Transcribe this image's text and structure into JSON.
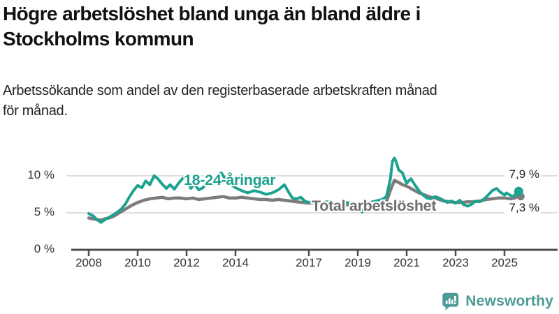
{
  "header": {
    "title_line1": "Högre arbetslöshet bland unga än bland äldre i",
    "title_line2": "Stockholms kommun",
    "subtitle_line1": "Arbetssökande som andel av den registerbaserade arbetskraften månad",
    "subtitle_line2": "för månad."
  },
  "chart_data": {
    "type": "line",
    "title": "Högre arbetslöshet bland unga än bland äldre i Stockholms kommun",
    "xlabel": "",
    "ylabel": "Arbetssökande som andel av den registerbaserade arbetskraften",
    "x_unit": "år (månadsdata)",
    "value_unit": "%",
    "ylim": [
      0,
      13
    ],
    "xlim": [
      2007.6,
      2025.9
    ],
    "grid": "horizontal",
    "grid_values": [
      5,
      10
    ],
    "y_ticks": [
      {
        "value": 10,
        "label": "10 %"
      },
      {
        "value": 5,
        "label": "5 %"
      },
      {
        "value": 0,
        "label": "0 %"
      }
    ],
    "x_ticks": [
      {
        "value": 2008,
        "label": "2008"
      },
      {
        "value": 2010,
        "label": "2010"
      },
      {
        "value": 2012,
        "label": "2012"
      },
      {
        "value": 2014,
        "label": "2014"
      },
      {
        "value": 2017,
        "label": "2017"
      },
      {
        "value": 2019,
        "label": "2019"
      },
      {
        "value": 2021,
        "label": "2021"
      },
      {
        "value": 2023,
        "label": "2023"
      },
      {
        "value": 2025,
        "label": "2025"
      }
    ],
    "colors": {
      "youth": "#1CA28F",
      "total": "#7C7C7C",
      "grid": "#DEDEDE",
      "axis": "#4D4D4D"
    },
    "series": [
      {
        "name": "Total arbetslöshet",
        "color": "#7C7C7C",
        "label_color": "#6E6E6E",
        "stroke_width": 4.5,
        "end_label": "7,3 %",
        "end_value": 7.3,
        "dot_radius": 5.5,
        "dot_dx": 3,
        "dot_dy": 1,
        "label_pos": {
          "x": 446,
          "y": 83
        },
        "end_label_pos": {
          "x": 722,
          "y": 87
        },
        "x": [
          2008.0,
          2008.17,
          2008.33,
          2008.5,
          2008.67,
          2008.83,
          2009.0,
          2009.25,
          2009.5,
          2009.75,
          2010.0,
          2010.25,
          2010.5,
          2010.75,
          2011.0,
          2011.25,
          2011.5,
          2011.75,
          2012.0,
          2012.25,
          2012.5,
          2012.75,
          2013.0,
          2013.25,
          2013.5,
          2013.75,
          2014.0,
          2014.25,
          2014.5,
          2014.75,
          2015.0,
          2015.25,
          2015.5,
          2015.75,
          2016.0,
          2016.25,
          2016.5,
          2016.75,
          2017.0,
          2017.25,
          2017.5,
          2017.75,
          2018.0,
          2018.25,
          2018.5,
          2018.75,
          2019.0,
          2019.25,
          2019.5,
          2019.75,
          2020.0,
          2020.17,
          2020.33,
          2020.5,
          2020.67,
          2020.83,
          2021.0,
          2021.17,
          2021.33,
          2021.5,
          2021.67,
          2021.83,
          2022.0,
          2022.25,
          2022.5,
          2022.75,
          2023.0,
          2023.25,
          2023.5,
          2023.75,
          2024.0,
          2024.25,
          2024.5,
          2024.75,
          2025.0,
          2025.25,
          2025.42,
          2025.58
        ],
        "values": [
          4.3,
          4.2,
          4.1,
          4.0,
          4.2,
          4.3,
          4.5,
          5.0,
          5.5,
          6.0,
          6.4,
          6.7,
          6.9,
          7.0,
          7.1,
          6.9,
          7.0,
          7.0,
          6.9,
          7.0,
          6.8,
          6.9,
          7.0,
          7.1,
          7.2,
          7.0,
          7.0,
          7.1,
          7.0,
          6.9,
          6.8,
          6.8,
          6.7,
          6.8,
          6.7,
          6.6,
          6.5,
          6.4,
          6.3,
          6.4,
          6.3,
          6.2,
          6.2,
          6.1,
          6.1,
          6.0,
          6.0,
          6.1,
          6.2,
          6.2,
          6.3,
          6.5,
          8.0,
          9.4,
          9.1,
          8.8,
          8.6,
          8.3,
          8.0,
          7.7,
          7.5,
          7.3,
          7.1,
          6.9,
          6.6,
          6.5,
          6.4,
          6.4,
          6.5,
          6.5,
          6.6,
          6.8,
          6.9,
          7.0,
          7.0,
          6.9,
          7.0,
          7.3
        ]
      },
      {
        "name": "18-24-åringar",
        "color": "#1CA28F",
        "label_color": "#1CA28F",
        "stroke_width": 4,
        "end_label": "7,9 %",
        "end_value": 7.9,
        "dot_radius": 6.5,
        "dot_dx": 0,
        "dot_dy": 0,
        "label_pos": {
          "x": 263,
          "y": 46
        },
        "end_label_pos": {
          "x": 722,
          "y": 39
        },
        "x": [
          2008.0,
          2008.17,
          2008.33,
          2008.5,
          2008.67,
          2008.83,
          2009.0,
          2009.17,
          2009.33,
          2009.5,
          2009.67,
          2009.83,
          2010.0,
          2010.17,
          2010.33,
          2010.5,
          2010.67,
          2010.83,
          2011.0,
          2011.17,
          2011.33,
          2011.5,
          2011.67,
          2011.83,
          2012.0,
          2012.17,
          2012.33,
          2012.5,
          2012.67,
          2012.83,
          2013.0,
          2013.25,
          2013.42,
          2013.58,
          2013.75,
          2014.0,
          2014.25,
          2014.5,
          2014.75,
          2015.0,
          2015.25,
          2015.5,
          2015.75,
          2016.0,
          2016.17,
          2016.33,
          2016.5,
          2016.67,
          2016.83,
          2017.0,
          2017.25,
          2017.5,
          2017.75,
          2018.0,
          2018.25,
          2018.5,
          2018.75,
          2019.0,
          2019.17,
          2019.33,
          2019.5,
          2019.75,
          2020.0,
          2020.17,
          2020.33,
          2020.42,
          2020.5,
          2020.58,
          2020.67,
          2020.83,
          2020.92,
          2021.0,
          2021.08,
          2021.17,
          2021.33,
          2021.5,
          2021.67,
          2021.83,
          2022.0,
          2022.17,
          2022.33,
          2022.5,
          2022.67,
          2022.83,
          2023.0,
          2023.17,
          2023.33,
          2023.5,
          2023.67,
          2023.83,
          2024.0,
          2024.17,
          2024.33,
          2024.5,
          2024.67,
          2024.83,
          2025.0,
          2025.08,
          2025.17,
          2025.33,
          2025.5,
          2025.58
        ],
        "values": [
          4.9,
          4.6,
          4.1,
          3.7,
          4.1,
          4.4,
          4.7,
          5.1,
          5.5,
          6.2,
          7.2,
          8.0,
          8.7,
          8.4,
          9.3,
          8.8,
          10.0,
          9.6,
          8.9,
          8.3,
          8.8,
          8.2,
          9.0,
          9.6,
          9.9,
          8.3,
          8.9,
          8.1,
          8.4,
          9.0,
          9.2,
          9.8,
          10.4,
          9.6,
          9.0,
          8.4,
          8.0,
          7.7,
          8.0,
          7.8,
          7.5,
          7.7,
          8.1,
          8.8,
          7.8,
          7.0,
          6.9,
          7.1,
          6.6,
          6.4,
          6.6,
          6.3,
          6.5,
          6.4,
          6.2,
          6.4,
          6.3,
          6.0,
          5.1,
          6.0,
          6.4,
          6.6,
          6.8,
          7.2,
          9.5,
          12.0,
          12.4,
          11.8,
          10.8,
          10.4,
          9.6,
          9.0,
          9.3,
          9.6,
          8.8,
          8.0,
          7.4,
          7.0,
          6.9,
          7.2,
          7.0,
          6.7,
          6.4,
          6.6,
          6.3,
          6.7,
          6.1,
          5.9,
          6.2,
          6.6,
          6.5,
          6.9,
          7.4,
          8.0,
          8.3,
          7.8,
          7.4,
          7.7,
          7.5,
          7.2,
          7.6,
          7.9
        ]
      }
    ]
  },
  "footer": {
    "brand": "Newsworthy",
    "logo_color": "#4D9B96"
  }
}
